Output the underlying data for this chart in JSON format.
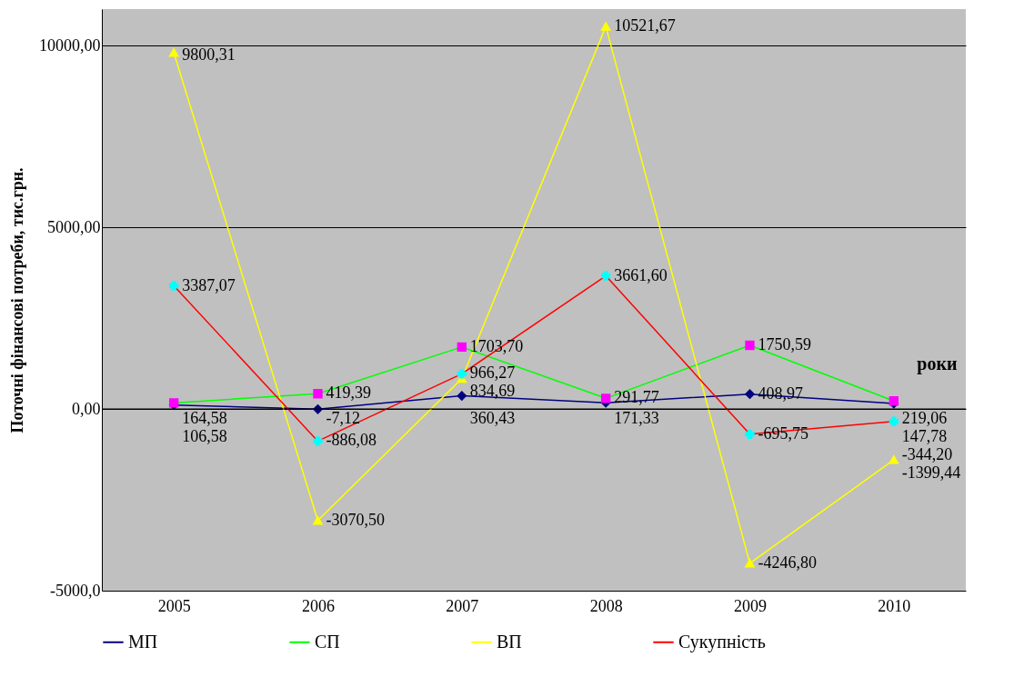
{
  "chart_data": {
    "type": "line",
    "ylabel": "Поточні фінансові потреби, тис.грн.",
    "xlabel": "роки",
    "categories": [
      "2005",
      "2006",
      "2007",
      "2008",
      "2009",
      "2010"
    ],
    "ylim": [
      -5000,
      11000
    ],
    "yticks": [
      {
        "value": -5000,
        "label": "-5000,0"
      },
      {
        "value": 0,
        "label": "0,00"
      },
      {
        "value": 5000,
        "label": "5000,00"
      },
      {
        "value": 10000,
        "label": "10000,00"
      }
    ],
    "grid": "y",
    "legend": "bottom",
    "data_labels": true,
    "series": [
      {
        "name": "МП",
        "color": "#000080",
        "marker": "diamond",
        "values": [
          106.58,
          -7.12,
          360.43,
          171.33,
          408.97,
          147.78
        ],
        "value_labels": [
          "106,58",
          "-7,12",
          "360,43",
          "171,33",
          "408,97",
          "147,78"
        ]
      },
      {
        "name": "СП",
        "color": "#00ff00",
        "colors": [
          "#ff00ff",
          "#ff00ff",
          "#ff00ff",
          "#ff00ff",
          "#ff00ff",
          "#ff00ff"
        ],
        "marker": "square",
        "values": [
          164.58,
          419.39,
          1703.7,
          291.77,
          1750.59,
          219.06
        ],
        "value_labels": [
          "164,58",
          "419,39",
          "1703,70",
          "291,77",
          "1750,59",
          "219,06"
        ]
      },
      {
        "name": "ВП",
        "color": "#ffff00",
        "marker": "triangle",
        "values": [
          9800.31,
          -3070.5,
          834.69,
          10521.67,
          -4246.8,
          -1399.44
        ],
        "value_labels": [
          "9800,31",
          "-3070,50",
          "834,69",
          "10521,67",
          "-4246,80",
          "-1399,44"
        ]
      },
      {
        "name": "Сукупність",
        "color": "#ff0000",
        "colors": [
          "#00ffff",
          "#00ffff",
          "#00ffff",
          "#00ffff",
          "#00ffff",
          "#00ffff"
        ],
        "marker": "cross",
        "values": [
          3387.07,
          -886.08,
          966.27,
          3661.6,
          -695.75,
          -344.2
        ],
        "value_labels": [
          "3387,07",
          "-886,08",
          "966,27",
          "3661,60",
          "-695,75",
          "-344,20"
        ]
      }
    ]
  }
}
